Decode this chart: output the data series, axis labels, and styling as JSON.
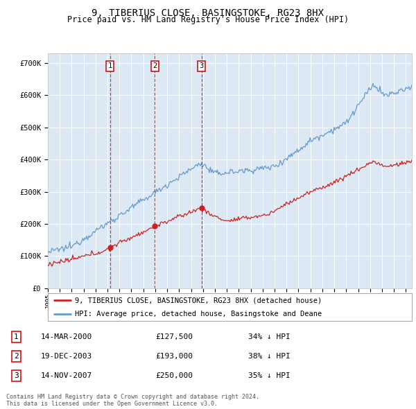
{
  "title": "9, TIBERIUS CLOSE, BASINGSTOKE, RG23 8HX",
  "subtitle": "Price paid vs. HM Land Registry's House Price Index (HPI)",
  "plot_bg_color": "#dce9f5",
  "hpi_color": "#6699cc",
  "paid_color": "#cc2222",
  "ylim": [
    0,
    730000
  ],
  "yticks": [
    0,
    100000,
    200000,
    300000,
    400000,
    500000,
    600000,
    700000
  ],
  "ytick_labels": [
    "£0",
    "£100K",
    "£200K",
    "£300K",
    "£400K",
    "£500K",
    "£600K",
    "£700K"
  ],
  "xlim_start": 1995.0,
  "xlim_end": 2025.5,
  "xtick_years": [
    1995,
    1996,
    1997,
    1998,
    1999,
    2000,
    2001,
    2002,
    2003,
    2004,
    2005,
    2006,
    2007,
    2008,
    2009,
    2010,
    2011,
    2012,
    2013,
    2014,
    2015,
    2016,
    2017,
    2018,
    2019,
    2020,
    2021,
    2022,
    2023,
    2024,
    2025
  ],
  "transactions": [
    {
      "num": 1,
      "date": "14-MAR-2000",
      "price": 127500,
      "hpi_diff": "34% ↓ HPI",
      "x_year": 2000.2
    },
    {
      "num": 2,
      "date": "19-DEC-2003",
      "price": 193000,
      "hpi_diff": "38% ↓ HPI",
      "x_year": 2003.96
    },
    {
      "num": 3,
      "date": "14-NOV-2007",
      "price": 250000,
      "hpi_diff": "35% ↓ HPI",
      "x_year": 2007.87
    }
  ],
  "legend_label_paid": "9, TIBERIUS CLOSE, BASINGSTOKE, RG23 8HX (detached house)",
  "legend_label_hpi": "HPI: Average price, detached house, Basingstoke and Deane",
  "footer": "Contains HM Land Registry data © Crown copyright and database right 2024.\nThis data is licensed under the Open Government Licence v3.0."
}
